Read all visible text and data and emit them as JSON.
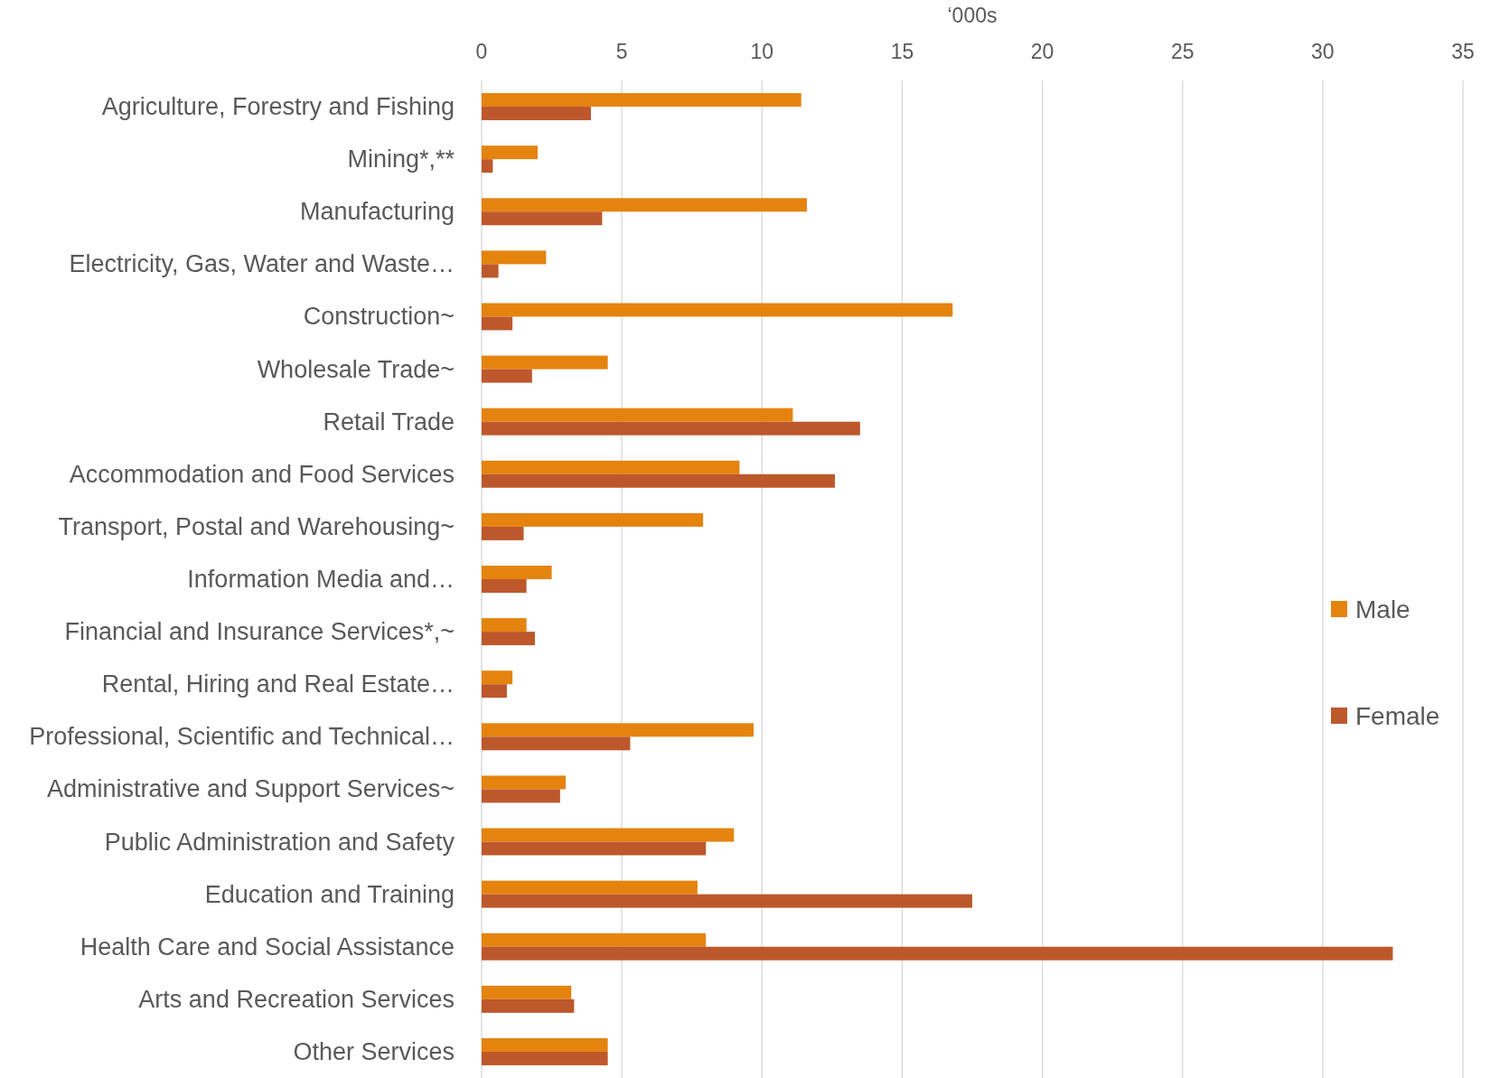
{
  "chart_data": {
    "type": "bar",
    "orientation": "horizontal",
    "xlabel": "‘000s",
    "categories": [
      "Agriculture, Forestry and Fishing",
      "Mining*,**",
      "Manufacturing",
      "Electricity, Gas, Water and Waste…",
      "Construction~",
      "Wholesale Trade~",
      "Retail Trade",
      "Accommodation and Food Services",
      "Transport, Postal and Warehousing~",
      "Information Media and…",
      "Financial and Insurance Services*,~",
      "Rental, Hiring and Real Estate…",
      "Professional, Scientific and Technical…",
      "Administrative and Support Services~",
      "Public Administration and Safety",
      "Education and Training",
      "Health Care and Social Assistance",
      "Arts and Recreation Services",
      "Other Services"
    ],
    "series": [
      {
        "name": "Male",
        "color": "#e5830f",
        "values": [
          11.4,
          2.0,
          11.6,
          2.3,
          16.8,
          4.5,
          11.1,
          9.2,
          7.9,
          2.5,
          1.6,
          1.1,
          9.7,
          3.0,
          9.0,
          7.7,
          8.0,
          3.2,
          4.5
        ]
      },
      {
        "name": "Female",
        "color": "#bd582c",
        "values": [
          3.9,
          0.4,
          4.3,
          0.6,
          1.1,
          1.8,
          13.5,
          12.6,
          1.5,
          1.6,
          1.9,
          0.9,
          5.3,
          2.8,
          8.0,
          17.5,
          32.5,
          3.3,
          4.5
        ]
      }
    ],
    "xlim": [
      0,
      35
    ],
    "xticks": [
      0,
      5,
      10,
      15,
      20,
      25,
      30,
      35
    ],
    "grid": "x",
    "legend": "right"
  }
}
